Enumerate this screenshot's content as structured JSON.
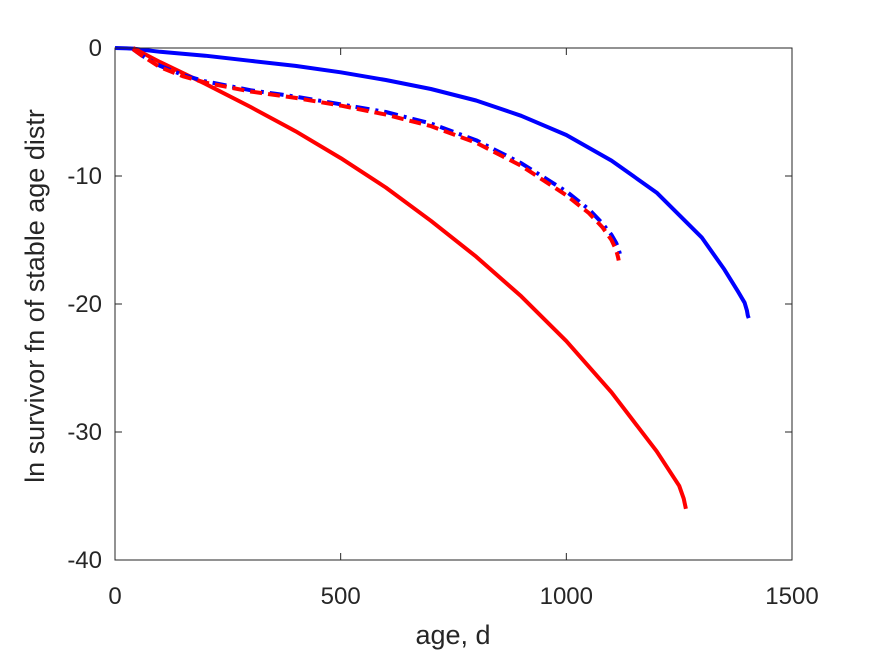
{
  "chart_data": {
    "type": "line",
    "title": "",
    "xlabel": "age, d",
    "ylabel": "ln survivor fn of stable age distr",
    "xlim": [
      0,
      1500
    ],
    "ylim": [
      -40,
      0
    ],
    "xticks": [
      "0",
      "500",
      "1000",
      "1500"
    ],
    "yticks": [
      "0",
      "-10",
      "-20",
      "-30",
      "-40"
    ],
    "grid": false,
    "legend": "none",
    "series": [
      {
        "color": "#0000ff",
        "style": "solid",
        "x": [
          0,
          40,
          100,
          200,
          300,
          400,
          500,
          600,
          700,
          800,
          900,
          1000,
          1100,
          1200,
          1300,
          1350,
          1380,
          1395,
          1400,
          1402,
          1404
        ],
        "y": [
          0,
          -0.05,
          -0.3,
          -0.6,
          -1.0,
          -1.4,
          -1.9,
          -2.5,
          -3.2,
          -4.1,
          -5.3,
          -6.8,
          -8.8,
          -11.3,
          -14.8,
          -17.3,
          -19.0,
          -19.9,
          -20.5,
          -20.9,
          -21.1
        ]
      },
      {
        "color": "#ff0000",
        "style": "solid",
        "x": [
          40,
          100,
          200,
          300,
          400,
          500,
          600,
          700,
          800,
          900,
          1000,
          1100,
          1200,
          1250,
          1260,
          1265
        ],
        "y": [
          0,
          -1.1,
          -2.8,
          -4.6,
          -6.5,
          -8.6,
          -10.9,
          -13.5,
          -16.3,
          -19.4,
          -22.9,
          -26.9,
          -31.5,
          -34.2,
          -35.2,
          -36.0
        ]
      },
      {
        "color": "#0000ff",
        "style": "dashdot",
        "x": [
          40,
          60,
          100,
          150,
          200,
          300,
          400,
          500,
          600,
          700,
          800,
          900,
          1000,
          1050,
          1080,
          1100,
          1110,
          1115,
          1118,
          1120
        ],
        "y": [
          -0.1,
          -0.6,
          -1.4,
          -2.1,
          -2.6,
          -3.3,
          -3.8,
          -4.4,
          -5.0,
          -5.9,
          -7.2,
          -9.0,
          -11.2,
          -12.6,
          -13.7,
          -14.6,
          -15.2,
          -15.6,
          -16.0,
          -16.3
        ]
      },
      {
        "color": "#ff0000",
        "style": "dashed",
        "x": [
          40,
          60,
          100,
          150,
          200,
          300,
          400,
          500,
          600,
          700,
          800,
          900,
          1000,
          1050,
          1080,
          1100,
          1108,
          1112,
          1115,
          1116
        ],
        "y": [
          -0.1,
          -0.6,
          -1.5,
          -2.2,
          -2.7,
          -3.4,
          -3.9,
          -4.5,
          -5.2,
          -6.1,
          -7.4,
          -9.2,
          -11.5,
          -12.9,
          -14.0,
          -15.0,
          -15.6,
          -16.0,
          -16.4,
          -16.6
        ]
      }
    ]
  }
}
